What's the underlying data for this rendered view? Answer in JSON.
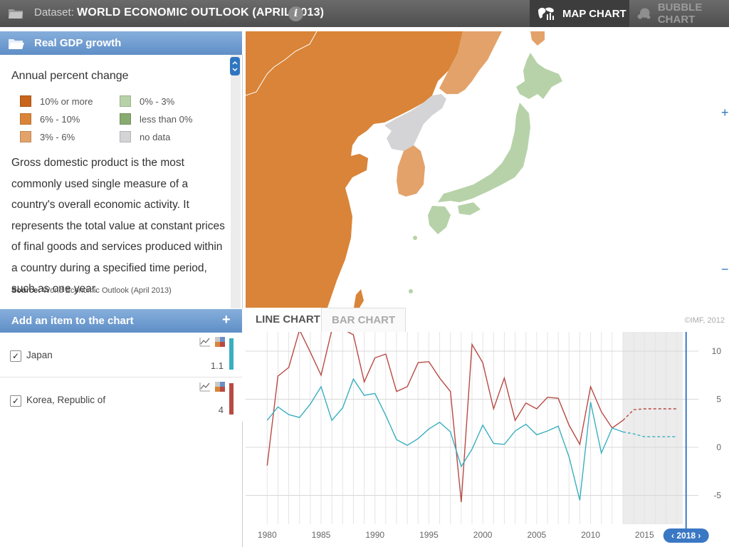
{
  "toolbar": {
    "dataset_label": "Dataset:",
    "dataset_name": "WORLD ECONOMIC OUTLOOK (APRIL 2013)",
    "info_glyph": "i",
    "map_chart_label": "MAP CHART",
    "bubble_chart_label": "BUBBLE CHART"
  },
  "indicator": {
    "title": "Real GDP growth",
    "unit_label": "Annual percent change",
    "legend": [
      {
        "label": "10% or more",
        "color": "#c8641b"
      },
      {
        "label": "6% - 10%",
        "color": "#d98438"
      },
      {
        "label": "3% - 6%",
        "color": "#e3a26a"
      },
      {
        "label": "0% - 3%",
        "color": "#b7d2a8"
      },
      {
        "label": "less than 0%",
        "color": "#88ab70"
      },
      {
        "label": "no data",
        "color": "#d4d4d6"
      }
    ],
    "description": "Gross domestic product is the most commonly used single measure of a country's overall economic activity. It represents the total value at constant prices of final goods and services produced within a country during a specified time period, such as one year.",
    "source_label": "Source:",
    "source_text": "World Economic Outlook (April 2013)"
  },
  "items_panel": {
    "title": "Add an item to the chart",
    "plus": "+",
    "items": [
      {
        "name": "Japan",
        "value": "1.1",
        "checked": true,
        "color": "#3aaec0"
      },
      {
        "name": "Korea, Republic of",
        "value": "4",
        "checked": true,
        "color": "#b84a44"
      }
    ]
  },
  "map": {
    "zoom_in": "+",
    "zoom_out": "−",
    "colors": {
      "china": "#d98438",
      "korea": "#e3a26a",
      "japan": "#b7d2a8",
      "north_korea": "#d4d4d6",
      "russia": "#e3a26a"
    }
  },
  "chart_tabs": {
    "line": "LINE CHART",
    "bar": "BAR CHART",
    "copyright": "©IMF, 2012"
  },
  "chart_data": {
    "type": "line",
    "x": [
      1980,
      1981,
      1982,
      1983,
      1984,
      1985,
      1986,
      1987,
      1988,
      1989,
      1990,
      1991,
      1992,
      1993,
      1994,
      1995,
      1996,
      1997,
      1998,
      1999,
      2000,
      2001,
      2002,
      2003,
      2004,
      2005,
      2006,
      2007,
      2008,
      2009,
      2010,
      2011,
      2012,
      2013,
      2014,
      2015,
      2016,
      2017,
      2018
    ],
    "x_ticks": [
      1980,
      1985,
      1990,
      1995,
      2000,
      2005,
      2010,
      2015
    ],
    "y_ticks": [
      10,
      5,
      0,
      -5
    ],
    "ylim": [
      -8,
      12
    ],
    "xlim": [
      1978,
      2020
    ],
    "projection_start": 2013,
    "selected_year_label": "‹ 2018 ›",
    "series": [
      {
        "name": "Korea, Republic of",
        "color": "#b84a44",
        "values": [
          -1.9,
          7.4,
          8.3,
          12.2,
          9.9,
          7.5,
          12.2,
          12.3,
          11.7,
          6.8,
          9.3,
          9.7,
          5.8,
          6.3,
          8.8,
          8.9,
          7.2,
          5.8,
          -5.7,
          10.7,
          8.8,
          4.0,
          7.2,
          2.8,
          4.6,
          4.0,
          5.2,
          5.1,
          2.3,
          0.3,
          6.3,
          3.7,
          2.0,
          2.8,
          3.9,
          4.0,
          4.0,
          4.0,
          4.0
        ]
      },
      {
        "name": "Japan",
        "color": "#3aaec0",
        "values": [
          2.8,
          4.2,
          3.4,
          3.1,
          4.5,
          6.3,
          2.8,
          4.1,
          7.1,
          5.4,
          5.6,
          3.3,
          0.8,
          0.2,
          0.9,
          1.9,
          2.6,
          1.6,
          -2.0,
          -0.2,
          2.3,
          0.4,
          0.3,
          1.7,
          2.4,
          1.3,
          1.7,
          2.2,
          -1.0,
          -5.5,
          4.7,
          -0.6,
          2.0,
          1.6,
          1.4,
          1.1,
          1.1,
          1.1,
          1.1
        ]
      }
    ]
  }
}
